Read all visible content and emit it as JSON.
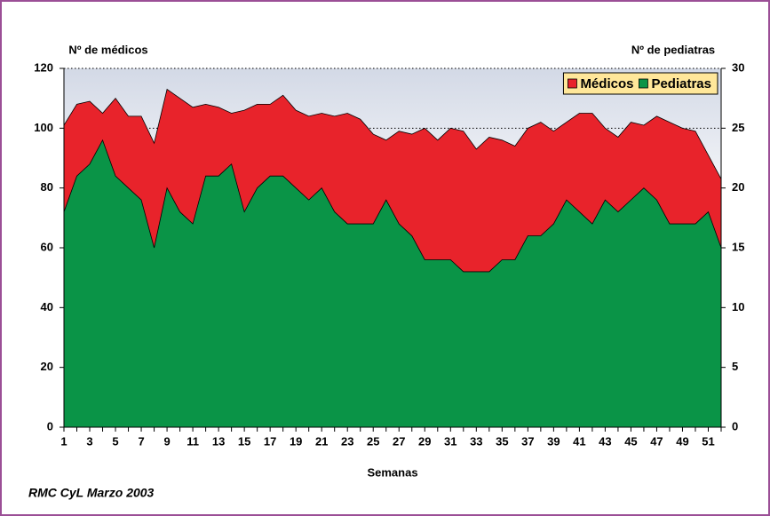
{
  "chart_data": {
    "type": "area",
    "y_label": "Nº de médicos",
    "y2_label": "Nº de pediatras",
    "x_label": "Semanas",
    "source": "RMC CyL Marzo 2003",
    "categories": [
      "1",
      null,
      "3",
      null,
      "5",
      null,
      "7",
      null,
      "9",
      null,
      "11",
      null,
      "13",
      null,
      "15",
      null,
      "17",
      null,
      "19",
      null,
      "21",
      null,
      "23",
      null,
      "25",
      null,
      "27",
      null,
      "29",
      null,
      "31",
      null,
      "33",
      null,
      "35",
      null,
      "37",
      null,
      "39",
      null,
      "41",
      null,
      "43",
      null,
      "45",
      null,
      "47",
      null,
      "49",
      null,
      "51",
      null
    ],
    "series": [
      {
        "name": "Médicos",
        "color": "#e8232b",
        "values": [
          101,
          108,
          109,
          105,
          110,
          104,
          104,
          95,
          113,
          110,
          107,
          108,
          107,
          105,
          106,
          108,
          108,
          111,
          106,
          104,
          105,
          104,
          105,
          103,
          98,
          96,
          99,
          98,
          100,
          96,
          100,
          99,
          93,
          97,
          96,
          94,
          100,
          102,
          99,
          102,
          105,
          105,
          100,
          97,
          102,
          101,
          104,
          102,
          100,
          99,
          91,
          83
        ]
      },
      {
        "name": "Pediatras",
        "color": "#0a9447",
        "axis": "y2",
        "values": [
          18,
          21,
          22,
          24,
          21,
          20,
          19,
          15,
          20,
          18,
          17,
          21,
          21,
          22,
          18,
          20,
          21,
          21,
          20,
          19,
          20,
          18,
          17,
          17,
          17,
          19,
          17,
          16,
          14,
          14,
          14,
          13,
          13,
          13,
          14,
          14,
          16,
          16,
          17,
          19,
          18,
          17,
          19,
          18,
          19,
          20,
          19,
          17,
          17,
          17,
          18,
          15
        ]
      }
    ],
    "ylim": [
      0,
      120
    ],
    "yticks": [
      0,
      20,
      40,
      60,
      80,
      100,
      120
    ],
    "y2lim": [
      0,
      30
    ],
    "y2ticks": [
      0,
      5,
      10,
      15,
      20,
      25,
      30
    ],
    "grid": true,
    "legend": "upper right"
  }
}
